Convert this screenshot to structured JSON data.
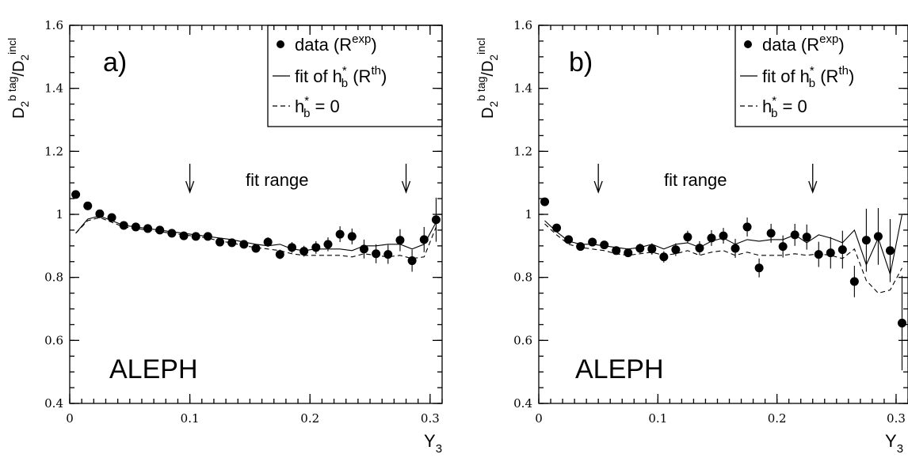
{
  "chart_data": [
    {
      "type": "scatter",
      "panel_label": "a)",
      "experiment_label": "ALEPH",
      "ylabel": {
        "main": "D",
        "sub1": "2",
        "sup1": "b tag",
        "slash": "/D",
        "sub2": "2",
        "sup2": "incl"
      },
      "xlabel": {
        "main": "Y",
        "sub": "3"
      },
      "xlim": [
        0,
        0.31
      ],
      "ylim": [
        0.4,
        1.6
      ],
      "xticks": [
        "0",
        "0.1",
        "0.2",
        "0.3"
      ],
      "yticks": [
        "0.4",
        "0.6",
        "0.8",
        "1",
        "1.2",
        "1.4",
        "1.6"
      ],
      "legend": {
        "data": {
          "main": "data (R",
          "sup": "exp",
          "tail": ")"
        },
        "fit": {
          "main": "fit of h",
          "sub": "b",
          "sup": "*",
          "mid": " (R",
          "sup2": "th",
          "tail": ")"
        },
        "zero": {
          "main": "h",
          "sub": "b",
          "sup": "*",
          "tail": " = 0"
        }
      },
      "fit_range": {
        "label": "fit range",
        "arrows_x": [
          0.1,
          0.28
        ]
      },
      "data_points": {
        "x": [
          0.005,
          0.015,
          0.025,
          0.035,
          0.045,
          0.055,
          0.065,
          0.075,
          0.085,
          0.095,
          0.105,
          0.115,
          0.125,
          0.135,
          0.145,
          0.155,
          0.165,
          0.175,
          0.185,
          0.195,
          0.205,
          0.215,
          0.225,
          0.235,
          0.245,
          0.255,
          0.265,
          0.275,
          0.285,
          0.295,
          0.305
        ],
        "y": [
          1.063,
          1.027,
          1.002,
          0.99,
          0.965,
          0.96,
          0.955,
          0.95,
          0.94,
          0.932,
          0.93,
          0.93,
          0.912,
          0.91,
          0.905,
          0.892,
          0.912,
          0.873,
          0.895,
          0.883,
          0.895,
          0.905,
          0.937,
          0.93,
          0.89,
          0.875,
          0.873,
          0.918,
          0.853,
          0.92,
          0.983
        ],
        "err": [
          0.008,
          0.008,
          0.008,
          0.008,
          0.008,
          0.008,
          0.008,
          0.008,
          0.008,
          0.008,
          0.008,
          0.008,
          0.008,
          0.01,
          0.01,
          0.012,
          0.015,
          0.015,
          0.017,
          0.017,
          0.02,
          0.022,
          0.025,
          0.025,
          0.03,
          0.03,
          0.03,
          0.035,
          0.035,
          0.04,
          0.07
        ]
      },
      "fit_line": {
        "x": [
          0.005,
          0.015,
          0.025,
          0.035,
          0.045,
          0.055,
          0.065,
          0.075,
          0.085,
          0.095,
          0.105,
          0.115,
          0.125,
          0.135,
          0.145,
          0.155,
          0.165,
          0.175,
          0.185,
          0.195,
          0.205,
          0.215,
          0.225,
          0.235,
          0.245,
          0.255,
          0.265,
          0.275,
          0.285,
          0.295,
          0.305
        ],
        "y": [
          0.94,
          0.985,
          0.995,
          0.98,
          0.965,
          0.96,
          0.955,
          0.95,
          0.945,
          0.94,
          0.935,
          0.93,
          0.925,
          0.92,
          0.912,
          0.905,
          0.9,
          0.905,
          0.89,
          0.885,
          0.89,
          0.89,
          0.89,
          0.885,
          0.9,
          0.9,
          0.905,
          0.905,
          0.89,
          0.905,
          0.975
        ]
      },
      "zero_line": {
        "x": [
          0.005,
          0.015,
          0.025,
          0.035,
          0.045,
          0.055,
          0.065,
          0.075,
          0.085,
          0.095,
          0.105,
          0.115,
          0.125,
          0.135,
          0.145,
          0.155,
          0.165,
          0.175,
          0.185,
          0.195,
          0.205,
          0.215,
          0.225,
          0.235,
          0.245,
          0.255,
          0.265,
          0.275,
          0.285,
          0.295,
          0.305
        ],
        "y": [
          0.94,
          0.98,
          0.99,
          0.975,
          0.96,
          0.955,
          0.95,
          0.945,
          0.94,
          0.935,
          0.93,
          0.925,
          0.915,
          0.91,
          0.9,
          0.895,
          0.89,
          0.885,
          0.875,
          0.87,
          0.87,
          0.87,
          0.87,
          0.865,
          0.875,
          0.87,
          0.865,
          0.87,
          0.86,
          0.865,
          0.96
        ]
      }
    },
    {
      "type": "scatter",
      "panel_label": "b)",
      "experiment_label": "ALEPH",
      "ylabel": {
        "main": "D",
        "sub1": "2",
        "sup1": "b tag",
        "slash": "/D",
        "sub2": "2",
        "sup2": "incl"
      },
      "xlabel": {
        "main": "Y",
        "sub": "3"
      },
      "xlim": [
        0,
        0.31
      ],
      "ylim": [
        0.4,
        1.6
      ],
      "xticks": [
        "0",
        "0.1",
        "0.2",
        "0.3"
      ],
      "yticks": [
        "0.4",
        "0.6",
        "0.8",
        "1",
        "1.2",
        "1.4",
        "1.6"
      ],
      "legend": {
        "data": {
          "main": "data (R",
          "sup": "exp",
          "tail": ")"
        },
        "fit": {
          "main": "fit of h",
          "sub": "b",
          "sup": "*",
          "mid": " (R",
          "sup2": "th",
          "tail": ")"
        },
        "zero": {
          "main": "h",
          "sub": "b",
          "sup": "*",
          "tail": " = 0"
        }
      },
      "fit_range": {
        "label": "fit range",
        "arrows_x": [
          0.05,
          0.23
        ]
      },
      "data_points": {
        "x": [
          0.005,
          0.015,
          0.025,
          0.035,
          0.045,
          0.055,
          0.065,
          0.075,
          0.085,
          0.095,
          0.105,
          0.115,
          0.125,
          0.135,
          0.145,
          0.155,
          0.165,
          0.175,
          0.185,
          0.195,
          0.205,
          0.215,
          0.225,
          0.235,
          0.245,
          0.255,
          0.265,
          0.275,
          0.285,
          0.295,
          0.305
        ],
        "y": [
          1.04,
          0.957,
          0.92,
          0.898,
          0.912,
          0.903,
          0.885,
          0.878,
          0.892,
          0.89,
          0.865,
          0.888,
          0.928,
          0.893,
          0.925,
          0.932,
          0.892,
          0.96,
          0.83,
          0.94,
          0.898,
          0.935,
          0.928,
          0.873,
          0.878,
          0.888,
          0.787,
          0.918,
          0.93,
          0.885,
          0.655
        ],
        "err": [
          0.008,
          0.008,
          0.008,
          0.01,
          0.01,
          0.012,
          0.012,
          0.012,
          0.015,
          0.018,
          0.018,
          0.02,
          0.02,
          0.022,
          0.025,
          0.025,
          0.03,
          0.03,
          0.03,
          0.03,
          0.035,
          0.035,
          0.04,
          0.04,
          0.05,
          0.06,
          0.05,
          0.1,
          0.09,
          0.1,
          0.15
        ]
      },
      "fit_line": {
        "x": [
          0.005,
          0.015,
          0.025,
          0.035,
          0.045,
          0.055,
          0.065,
          0.075,
          0.085,
          0.095,
          0.105,
          0.115,
          0.125,
          0.135,
          0.145,
          0.155,
          0.165,
          0.175,
          0.185,
          0.195,
          0.205,
          0.215,
          0.225,
          0.235,
          0.245,
          0.255,
          0.265,
          0.275,
          0.285,
          0.295,
          0.305
        ],
        "y": [
          0.98,
          0.945,
          0.915,
          0.905,
          0.905,
          0.9,
          0.895,
          0.89,
          0.895,
          0.905,
          0.89,
          0.905,
          0.91,
          0.895,
          0.915,
          0.925,
          0.905,
          0.92,
          0.915,
          0.92,
          0.92,
          0.935,
          0.91,
          0.935,
          0.925,
          0.91,
          0.95,
          0.84,
          0.925,
          0.81,
          1.0
        ]
      },
      "zero_line": {
        "x": [
          0.005,
          0.015,
          0.025,
          0.035,
          0.045,
          0.055,
          0.065,
          0.075,
          0.085,
          0.095,
          0.105,
          0.115,
          0.125,
          0.135,
          0.145,
          0.155,
          0.165,
          0.175,
          0.185,
          0.195,
          0.205,
          0.215,
          0.225,
          0.235,
          0.245,
          0.255,
          0.265,
          0.275,
          0.285,
          0.295,
          0.305
        ],
        "y": [
          0.97,
          0.935,
          0.905,
          0.895,
          0.89,
          0.885,
          0.875,
          0.87,
          0.875,
          0.88,
          0.87,
          0.875,
          0.885,
          0.87,
          0.88,
          0.885,
          0.87,
          0.88,
          0.87,
          0.87,
          0.87,
          0.875,
          0.87,
          0.875,
          0.87,
          0.86,
          0.89,
          0.79,
          0.75,
          0.76,
          0.83
        ]
      }
    }
  ]
}
